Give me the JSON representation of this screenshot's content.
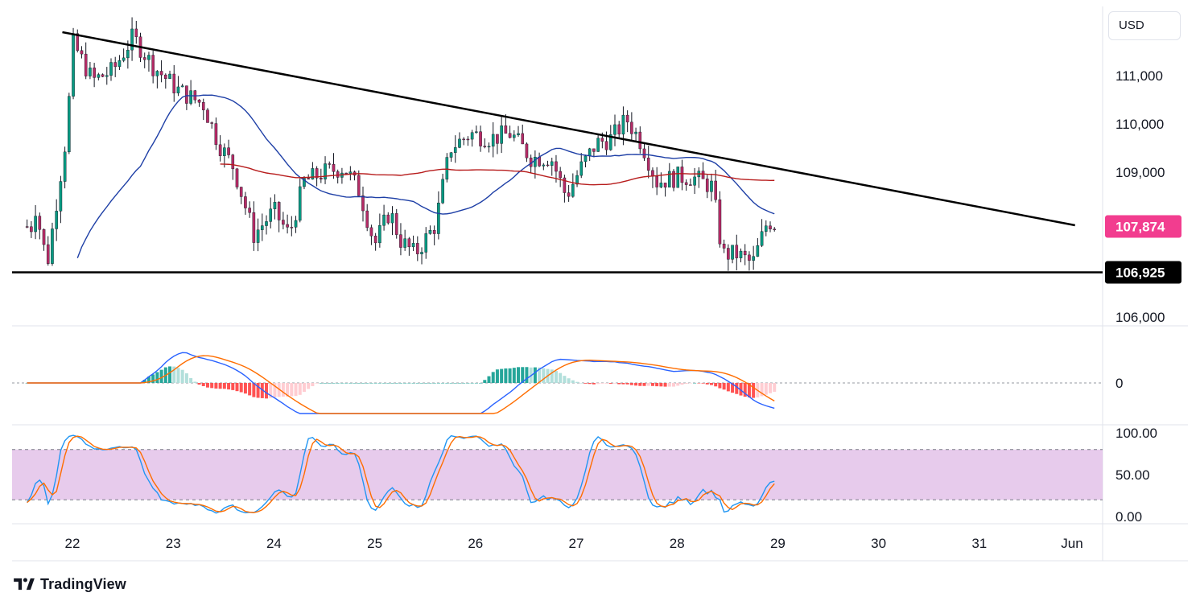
{
  "currency": "USD",
  "brand": {
    "name": "TradingView",
    "logo_icon": "tradingview-logo-icon"
  },
  "chart_data": [
    {
      "type": "candlestick",
      "pane": "price",
      "price_axis": {
        "ticks": [
          106000,
          107000,
          108000,
          109000,
          110000,
          111000,
          112000
        ],
        "tick_labels": [
          "106,000",
          "110,000",
          "109,000",
          "111,000"
        ],
        "range": [
          105800,
          112500
        ]
      },
      "date_labels": [
        "22",
        "23",
        "24",
        "25",
        "26",
        "27",
        "28",
        "29",
        "30",
        "31",
        "Jun"
      ],
      "current_price": {
        "value": 107874,
        "label": "107,874",
        "color": "#f23d8f"
      },
      "support_level": {
        "value": 106925,
        "label": "106,925",
        "color": "#000000"
      },
      "trendline": {
        "start": {
          "day": 21.9,
          "price": 111900
        },
        "end": {
          "day": 31.95,
          "price": 107900
        },
        "color": "#000000"
      },
      "colors": {
        "up": "#089981",
        "down": "#b52b66",
        "ma_fast": "#1e3fa6",
        "ma_slow": "#b71c1c"
      }
    },
    {
      "type": "macd",
      "pane": "macd",
      "zero_label": "0",
      "colors": {
        "macd": "#2962ff",
        "signal": "#ff6d00",
        "hist_pos_strong": "#26a69a",
        "hist_pos_weak": "#b2dfdb",
        "hist_neg_strong": "#ff5252",
        "hist_neg_weak": "#ffcdd2"
      }
    },
    {
      "type": "stochastic",
      "pane": "stoch",
      "ticks": [
        0,
        50,
        100
      ],
      "tick_labels": [
        "100.00",
        "50.00",
        "0.00"
      ],
      "band": [
        20,
        80
      ],
      "colors": {
        "k": "#2196f3",
        "d": "#ff6d00",
        "band": "#e1bee7"
      }
    }
  ]
}
